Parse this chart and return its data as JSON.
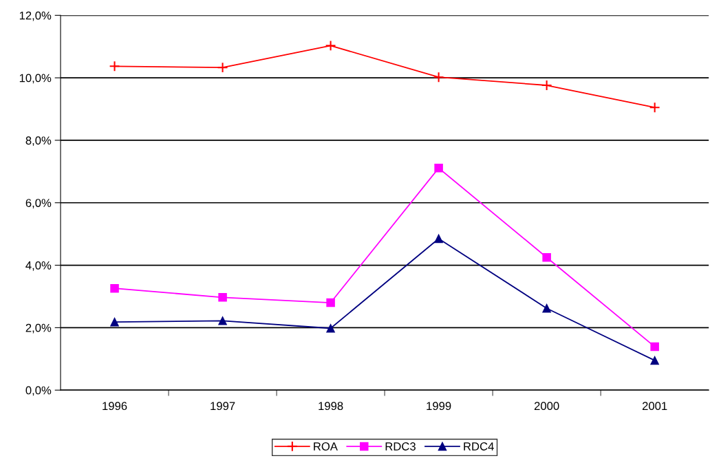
{
  "chart_data": {
    "type": "line",
    "categories": [
      "1996",
      "1997",
      "1998",
      "1999",
      "2000",
      "2001"
    ],
    "series": [
      {
        "name": "ROA",
        "color": "#ff0000",
        "marker": "cross",
        "values": [
          10.37,
          10.33,
          11.03,
          10.02,
          9.76,
          9.05
        ]
      },
      {
        "name": "RDC3",
        "color": "#ff00ff",
        "marker": "square",
        "values": [
          3.26,
          2.97,
          2.8,
          7.11,
          4.25,
          1.39
        ]
      },
      {
        "name": "RDC4",
        "color": "#000080",
        "marker": "triangle",
        "values": [
          2.18,
          2.22,
          1.98,
          4.85,
          2.62,
          0.95
        ]
      }
    ],
    "ylim": [
      0,
      12
    ],
    "yticks": [
      {
        "value": 0,
        "label": "0,0%"
      },
      {
        "value": 2,
        "label": "2,0%"
      },
      {
        "value": 4,
        "label": "4,0%"
      },
      {
        "value": 6,
        "label": "6,0%"
      },
      {
        "value": 8,
        "label": "8,0%"
      },
      {
        "value": 10,
        "label": "10,0%"
      },
      {
        "value": 12,
        "label": "12,0%"
      }
    ],
    "grid": "y",
    "legend": "bottom",
    "line_style": "solid"
  }
}
